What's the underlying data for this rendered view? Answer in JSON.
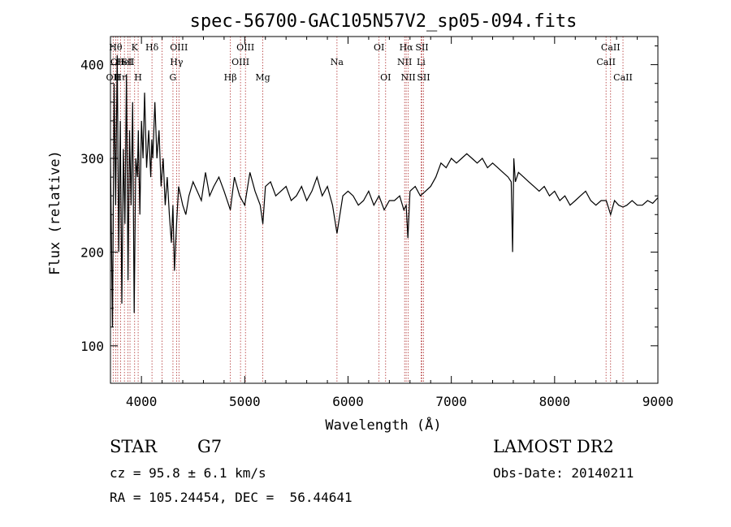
{
  "chart_data": {
    "type": "line",
    "title": "spec-56700-GAC105N57V2_sp05-094.fits",
    "xlabel": "Wavelength (Å)",
    "ylabel": "Flux (relative)",
    "xlim": [
      3700,
      9000
    ],
    "ylim": [
      60,
      430
    ],
    "xticks": [
      4000,
      5000,
      6000,
      7000,
      8000,
      9000
    ],
    "yticks": [
      100,
      200,
      300,
      400
    ],
    "grid": false,
    "line_color": "#000000",
    "marker_color": "#b03030",
    "series": [
      {
        "x": [
          3700,
          3720,
          3735,
          3750,
          3765,
          3780,
          3795,
          3810,
          3825,
          3840,
          3855,
          3870,
          3885,
          3900,
          3915,
          3930,
          3945,
          3960,
          3970,
          3985,
          4000,
          4015,
          4030,
          4050,
          4070,
          4090,
          4100,
          4110,
          4130,
          4150,
          4170,
          4190,
          4210,
          4230,
          4250,
          4270,
          4290,
          4305,
          4320,
          4340,
          4360,
          4380,
          4400,
          4430,
          4460,
          4500,
          4540,
          4580,
          4620,
          4660,
          4700,
          4750,
          4800,
          4861,
          4900,
          4950,
          5000,
          5050,
          5100,
          5150,
          5175,
          5200,
          5250,
          5300,
          5350,
          5400,
          5450,
          5500,
          5550,
          5600,
          5650,
          5700,
          5750,
          5800,
          5850,
          5893,
          5950,
          6000,
          6050,
          6100,
          6150,
          6200,
          6250,
          6300,
          6350,
          6400,
          6450,
          6500,
          6540,
          6563,
          6580,
          6600,
          6650,
          6700,
          6750,
          6800,
          6850,
          6900,
          6950,
          7000,
          7050,
          7100,
          7150,
          7200,
          7250,
          7300,
          7350,
          7400,
          7450,
          7500,
          7550,
          7580,
          7593,
          7605,
          7620,
          7650,
          7700,
          7750,
          7800,
          7850,
          7900,
          7950,
          8000,
          8050,
          8100,
          8150,
          8200,
          8250,
          8300,
          8350,
          8400,
          8450,
          8500,
          8542,
          8580,
          8620,
          8662,
          8700,
          8750,
          8800,
          8850,
          8900,
          8950,
          9000
        ],
        "y": [
          300,
          120,
          380,
          250,
          410,
          200,
          340,
          145,
          310,
          230,
          390,
          170,
          330,
          250,
          360,
          135,
          300,
          280,
          330,
          240,
          340,
          300,
          370,
          290,
          330,
          280,
          320,
          300,
          360,
          300,
          330,
          270,
          300,
          250,
          280,
          240,
          210,
          250,
          180,
          230,
          270,
          260,
          250,
          240,
          260,
          275,
          265,
          255,
          285,
          260,
          270,
          280,
          265,
          245,
          280,
          260,
          250,
          285,
          265,
          250,
          230,
          270,
          275,
          260,
          265,
          270,
          255,
          260,
          270,
          255,
          265,
          280,
          260,
          270,
          250,
          220,
          260,
          265,
          260,
          250,
          255,
          265,
          250,
          260,
          245,
          255,
          255,
          260,
          245,
          250,
          215,
          265,
          270,
          260,
          265,
          270,
          280,
          295,
          290,
          300,
          295,
          300,
          305,
          300,
          295,
          300,
          290,
          295,
          290,
          285,
          280,
          275,
          200,
          300,
          275,
          285,
          280,
          275,
          270,
          265,
          270,
          260,
          265,
          255,
          260,
          250,
          255,
          260,
          265,
          255,
          250,
          255,
          255,
          240,
          255,
          250,
          248,
          250,
          255,
          250,
          250,
          255,
          252,
          258
        ]
      }
    ],
    "lines": [
      {
        "wl": 3726,
        "label": "OII",
        "row": 3
      },
      {
        "wl": 3750,
        "label": "Hθ",
        "row": 1
      },
      {
        "wl": 3770,
        "label": "OII",
        "row": 2
      },
      {
        "wl": 3798,
        "label": "Hη",
        "row": 3
      },
      {
        "wl": 3835,
        "label": "HeI",
        "row": 2
      },
      {
        "wl": 3869,
        "label": "SII",
        "row": 2
      },
      {
        "wl": 3889,
        "label": "",
        "row": 0
      },
      {
        "wl": 3934,
        "label": "K",
        "row": 1
      },
      {
        "wl": 3968,
        "label": "H",
        "row": 3
      },
      {
        "wl": 4102,
        "label": "Hδ",
        "row": 1
      },
      {
        "wl": 4200,
        "label": "",
        "row": 0
      },
      {
        "wl": 4305,
        "label": "G",
        "row": 3
      },
      {
        "wl": 4340,
        "label": "Hγ",
        "row": 2
      },
      {
        "wl": 4363,
        "label": "OIII",
        "row": 1
      },
      {
        "wl": 4861,
        "label": "Hβ",
        "row": 3
      },
      {
        "wl": 4959,
        "label": "OIII",
        "row": 2
      },
      {
        "wl": 5007,
        "label": "OIII",
        "row": 1
      },
      {
        "wl": 5175,
        "label": "Mg",
        "row": 3
      },
      {
        "wl": 5893,
        "label": "Na",
        "row": 2
      },
      {
        "wl": 6300,
        "label": "OI",
        "row": 1
      },
      {
        "wl": 6364,
        "label": "OI",
        "row": 3
      },
      {
        "wl": 6548,
        "label": "NII",
        "row": 2
      },
      {
        "wl": 6563,
        "label": "Hα",
        "row": 1
      },
      {
        "wl": 6583,
        "label": "NII",
        "row": 3
      },
      {
        "wl": 6707,
        "label": "Li",
        "row": 2
      },
      {
        "wl": 6716,
        "label": "SII",
        "row": 1
      },
      {
        "wl": 6731,
        "label": "SII",
        "row": 3
      },
      {
        "wl": 8498,
        "label": "CaII",
        "row": 2
      },
      {
        "wl": 8542,
        "label": "CaII",
        "row": 1
      },
      {
        "wl": 8662,
        "label": "CaII",
        "row": 3
      }
    ]
  },
  "info": {
    "class": "STAR",
    "subclass": "G7",
    "survey": "LAMOST DR2",
    "cz": "cz = 95.8 ± 6.1 km/s",
    "obsdate": "Obs-Date: 20140211",
    "radec": "RA = 105.24454, DEC =  56.44641"
  }
}
